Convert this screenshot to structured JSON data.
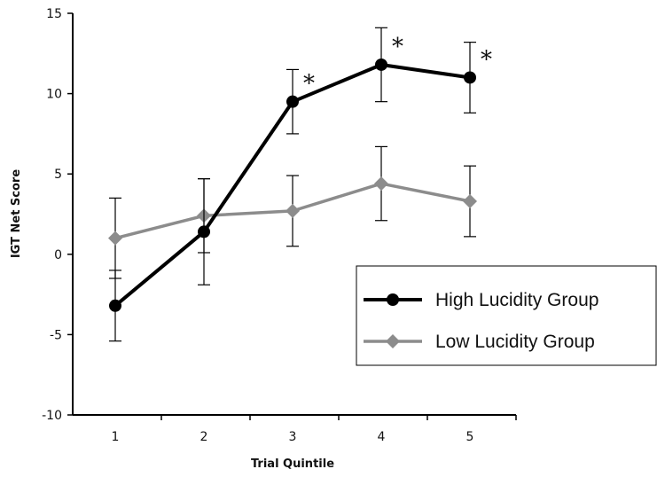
{
  "chart_data": {
    "type": "line",
    "title": "",
    "xlabel": "Trial Quintile",
    "ylabel": "IGT Net Score",
    "categories": [
      "1",
      "2",
      "3",
      "4",
      "5"
    ],
    "ylim": [
      -10,
      15
    ],
    "yticks": [
      -10,
      -5,
      0,
      5,
      10,
      15
    ],
    "grid": false,
    "legend_position": "right",
    "series": [
      {
        "name": "High Lucidity Group",
        "values": [
          -3.2,
          1.4,
          9.5,
          11.8,
          11.0
        ],
        "error": [
          2.2,
          3.3,
          2.0,
          2.3,
          2.2
        ],
        "marker": "circle",
        "color": "#000000",
        "significance": [
          "",
          "",
          "*",
          "*",
          "*"
        ]
      },
      {
        "name": "Low Lucidity Group",
        "values": [
          1.0,
          2.4,
          2.7,
          4.4,
          3.3
        ],
        "error": [
          2.5,
          2.3,
          2.2,
          2.3,
          2.2
        ],
        "marker": "diamond",
        "color": "#8c8c8c",
        "significance": [
          "",
          "",
          "",
          "",
          ""
        ]
      }
    ]
  }
}
